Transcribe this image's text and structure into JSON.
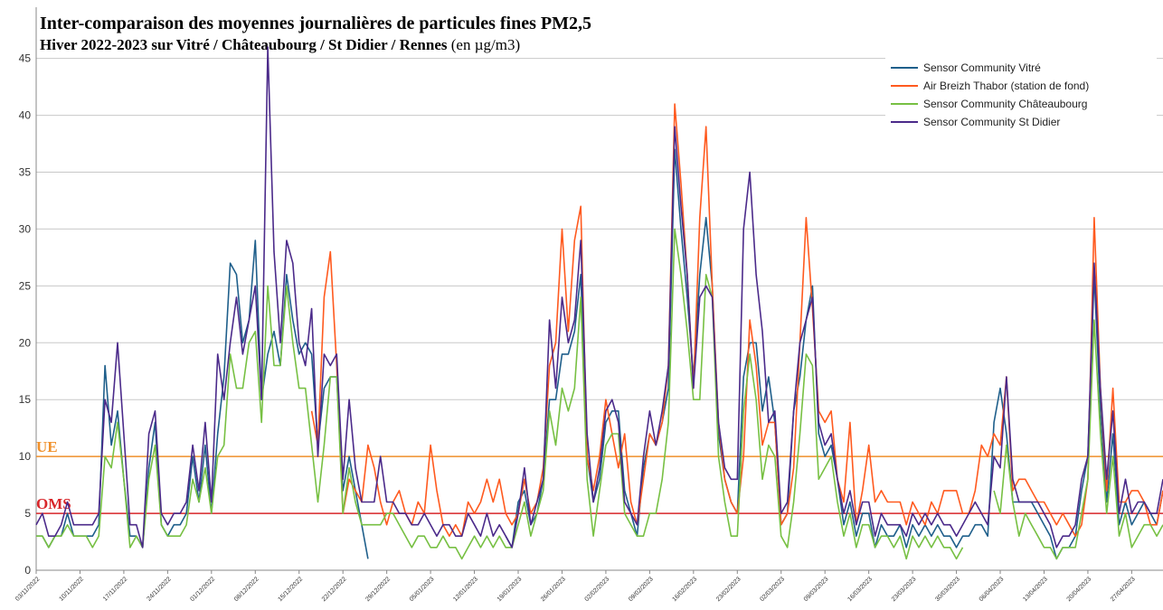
{
  "chart_data": {
    "type": "line",
    "title": "Inter-comparaison des moyennes journalières de particules fines PM2,5",
    "subtitle": "Hiver 2022-2023 sur Vitré / Châteaubourg / St Didier / Rennes",
    "unit": "(en µg/m3)",
    "categories": [
      "03/11/2022",
      null,
      null,
      null,
      null,
      null,
      null,
      "10/11/2022",
      null,
      null,
      null,
      null,
      null,
      null,
      "17/11/2022",
      null,
      null,
      null,
      null,
      null,
      null,
      "24/11/2022",
      null,
      null,
      null,
      null,
      null,
      null,
      "01/12/2022",
      null,
      null,
      null,
      null,
      null,
      null,
      "08/12/2022",
      null,
      null,
      null,
      null,
      null,
      null,
      "15/12/2022",
      null,
      null,
      null,
      null,
      null,
      null,
      "22/12/2022",
      null,
      null,
      null,
      null,
      null,
      null,
      "29/12/2022",
      null,
      null,
      null,
      null,
      null,
      null,
      "05/01/2023",
      null,
      null,
      null,
      null,
      null,
      null,
      "12/01/2023",
      null,
      null,
      null,
      null,
      null,
      null,
      "19/01/2023",
      null,
      null,
      null,
      null,
      null,
      null,
      "26/01/2023",
      null,
      null,
      null,
      null,
      null,
      null,
      "02/02/2023",
      null,
      null,
      null,
      null,
      null,
      null,
      "09/02/2023",
      null,
      null,
      null,
      null,
      null,
      null,
      "16/02/2023",
      null,
      null,
      null,
      null,
      null,
      null,
      "23/02/2023",
      null,
      null,
      null,
      null,
      null,
      null,
      "02/03/2023",
      null,
      null,
      null,
      null,
      null,
      null,
      "09/03/2023",
      null,
      null,
      null,
      null,
      null,
      null,
      "16/03/2023",
      null,
      null,
      null,
      null,
      null,
      null,
      "23/03/2023",
      null,
      null,
      null,
      null,
      null,
      null,
      "30/03/2023",
      null,
      null,
      null,
      null,
      null,
      null,
      "06/04/2023",
      null,
      null,
      null,
      null,
      null,
      null,
      "13/04/2023",
      null,
      null,
      null,
      null,
      null,
      null,
      "20/04/2023",
      null,
      null,
      null,
      null,
      null,
      null,
      "27/04/2023",
      null,
      null,
      null,
      null,
      null
    ],
    "series": [
      {
        "name": "Sensor Community Vitré",
        "color": "#1f5f8b",
        "values": [
          3,
          3,
          2,
          3,
          3,
          5,
          3,
          3,
          3,
          3,
          4,
          18,
          11,
          14,
          8,
          3,
          3,
          2,
          9,
          13,
          4,
          3,
          4,
          4,
          5,
          10,
          6,
          11,
          5,
          12,
          17,
          27,
          26,
          20,
          22,
          29,
          15,
          19,
          21,
          18,
          26,
          22,
          19,
          20,
          19,
          11,
          16,
          17,
          17,
          7,
          10,
          7,
          4,
          1,
          null,
          null,
          null,
          null,
          null,
          null,
          null,
          null,
          null,
          null,
          null,
          null,
          null,
          null,
          null,
          null,
          null,
          null,
          null,
          null,
          null,
          3,
          2,
          6,
          7,
          4,
          5,
          8,
          15,
          15,
          19,
          19,
          21,
          26,
          10,
          6,
          8,
          13,
          14,
          14,
          7,
          5,
          3,
          9,
          12,
          11,
          13,
          16,
          37,
          30,
          24,
          17,
          26,
          31,
          25,
          12,
          8,
          6,
          5,
          17,
          20,
          20,
          14,
          17,
          13,
          4,
          5,
          14,
          17,
          22,
          25,
          12,
          10,
          11,
          8,
          4,
          6,
          3,
          5,
          5,
          2,
          4,
          3,
          3,
          4,
          2,
          4,
          3,
          4,
          3,
          4,
          3,
          3,
          2,
          3,
          3,
          4,
          4,
          3,
          13,
          16,
          12,
          6,
          6,
          6,
          6,
          5,
          4,
          3,
          1,
          2,
          2,
          3,
          7,
          10,
          26,
          14,
          6,
          12,
          4,
          6,
          4,
          5,
          6,
          5,
          4,
          7
        ]
      },
      {
        "name": "Air Breizh Thabor (station de fond)",
        "color": "#ff5a1f",
        "values": [
          null,
          null,
          null,
          null,
          null,
          null,
          null,
          null,
          null,
          null,
          null,
          null,
          null,
          null,
          null,
          null,
          null,
          null,
          null,
          null,
          null,
          null,
          null,
          null,
          null,
          null,
          null,
          null,
          null,
          null,
          null,
          null,
          null,
          null,
          null,
          null,
          null,
          null,
          null,
          null,
          null,
          null,
          null,
          null,
          14,
          11,
          24,
          28,
          18,
          5,
          8,
          7,
          6,
          11,
          9,
          6,
          4,
          6,
          7,
          5,
          4,
          6,
          5,
          11,
          7,
          4,
          3,
          4,
          3,
          6,
          5,
          6,
          8,
          6,
          8,
          5,
          4,
          5,
          8,
          5,
          6,
          9,
          18,
          20,
          30,
          21,
          29,
          32,
          10,
          7,
          10,
          15,
          12,
          9,
          12,
          6,
          4,
          8,
          12,
          11,
          13,
          18,
          41,
          34,
          26,
          16,
          31,
          39,
          25,
          13,
          8,
          6,
          5,
          10,
          22,
          18,
          11,
          13,
          13,
          4,
          5,
          9,
          20,
          31,
          23,
          14,
          13,
          14,
          8,
          6,
          13,
          4,
          7,
          11,
          6,
          7,
          6,
          6,
          6,
          4,
          6,
          5,
          4,
          6,
          5,
          7,
          7,
          7,
          5,
          5,
          7,
          11,
          10,
          12,
          11,
          17,
          7,
          8,
          8,
          7,
          6,
          6,
          5,
          4,
          5,
          4,
          3,
          4,
          8,
          31,
          16,
          7,
          16,
          6,
          6,
          7,
          7,
          6,
          4,
          4,
          7
        ]
      },
      {
        "name": "Sensor Community Châteaubourg",
        "color": "#77c043",
        "values": [
          3,
          3,
          2,
          3,
          3,
          4,
          3,
          3,
          3,
          2,
          3,
          10,
          9,
          13,
          8,
          2,
          3,
          2,
          8,
          11,
          4,
          3,
          3,
          3,
          4,
          8,
          6,
          9,
          5,
          10,
          11,
          19,
          16,
          16,
          20,
          21,
          13,
          25,
          18,
          18,
          25,
          20,
          16,
          16,
          11,
          6,
          11,
          17,
          17,
          5,
          9,
          6,
          4,
          4,
          4,
          4,
          5,
          5,
          4,
          3,
          2,
          3,
          3,
          2,
          2,
          3,
          2,
          2,
          1,
          2,
          3,
          2,
          3,
          2,
          3,
          2,
          2,
          4,
          6,
          3,
          5,
          7,
          14,
          11,
          16,
          14,
          16,
          24,
          8,
          3,
          7,
          11,
          12,
          12,
          5,
          4,
          3,
          3,
          5,
          5,
          8,
          13,
          30,
          26,
          21,
          15,
          15,
          26,
          24,
          10,
          6,
          3,
          3,
          14,
          19,
          15,
          8,
          11,
          10,
          3,
          2,
          6,
          12,
          19,
          18,
          8,
          9,
          10,
          6,
          3,
          5,
          2,
          4,
          4,
          2,
          3,
          3,
          2,
          3,
          1,
          3,
          2,
          3,
          2,
          3,
          2,
          2,
          1,
          2,
          null,
          null,
          null,
          null,
          7,
          5,
          11,
          6,
          3,
          5,
          4,
          3,
          2,
          2,
          1,
          2,
          2,
          2,
          5,
          8,
          22,
          12,
          5,
          10,
          3,
          5,
          2,
          3,
          4,
          4,
          3,
          4
        ]
      },
      {
        "name": "Sensor Community St Didier",
        "color": "#4b2a8a",
        "values": [
          4,
          5,
          3,
          3,
          4,
          6,
          4,
          4,
          4,
          4,
          5,
          15,
          13,
          20,
          12,
          4,
          4,
          2,
          12,
          14,
          5,
          4,
          5,
          5,
          6,
          11,
          7,
          13,
          6,
          19,
          15,
          20,
          24,
          19,
          22,
          25,
          15,
          46,
          28,
          20,
          29,
          27,
          20,
          18,
          23,
          10,
          19,
          18,
          19,
          8,
          15,
          9,
          6,
          6,
          6,
          10,
          6,
          6,
          5,
          5,
          4,
          4,
          5,
          4,
          3,
          4,
          4,
          3,
          3,
          5,
          4,
          3,
          5,
          3,
          4,
          3,
          2,
          5,
          9,
          4,
          6,
          8,
          22,
          16,
          24,
          20,
          22,
          29,
          12,
          6,
          9,
          14,
          15,
          13,
          6,
          5,
          4,
          10,
          14,
          11,
          14,
          18,
          39,
          32,
          26,
          16,
          24,
          25,
          24,
          13,
          9,
          8,
          8,
          30,
          35,
          26,
          21,
          13,
          14,
          5,
          6,
          14,
          20,
          22,
          24,
          13,
          11,
          12,
          8,
          5,
          7,
          4,
          6,
          6,
          3,
          5,
          4,
          4,
          4,
          3,
          5,
          4,
          5,
          4,
          5,
          4,
          4,
          3,
          4,
          5,
          6,
          5,
          4,
          10,
          9,
          17,
          8,
          6,
          6,
          6,
          6,
          5,
          4,
          2,
          3,
          3,
          4,
          8,
          10,
          27,
          16,
          8,
          14,
          5,
          8,
          5,
          6,
          6,
          5,
          5,
          8
        ]
      }
    ],
    "reference_lines": [
      {
        "label": "UE",
        "value": 10,
        "color": "#f0902a"
      },
      {
        "label": "OMS",
        "value": 5,
        "color": "#d8262a"
      }
    ],
    "ylim": [
      0,
      49.5
    ],
    "yticks": [
      0,
      5,
      10,
      15,
      20,
      25,
      30,
      35,
      40,
      45
    ],
    "grid": true,
    "legend": "upper right"
  }
}
